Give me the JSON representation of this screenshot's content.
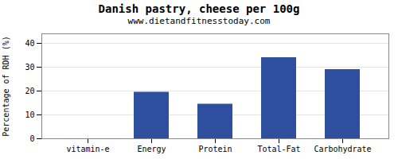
{
  "chart_data": {
    "type": "bar",
    "title": "Danish pastry, cheese per 100g",
    "subtitle": "www.dietandfitnesstoday.com",
    "categories": [
      "vitamin-e",
      "Energy",
      "Protein",
      "Total-Fat",
      "Carbohydrate"
    ],
    "values": [
      0,
      19.5,
      14.5,
      34,
      29
    ],
    "color": "#2d4f9e",
    "ylabel": "Percentage of RDH (%)",
    "ylim": [
      0,
      44
    ],
    "yticks": [
      0,
      10,
      20,
      30,
      40
    ],
    "grid": true
  }
}
